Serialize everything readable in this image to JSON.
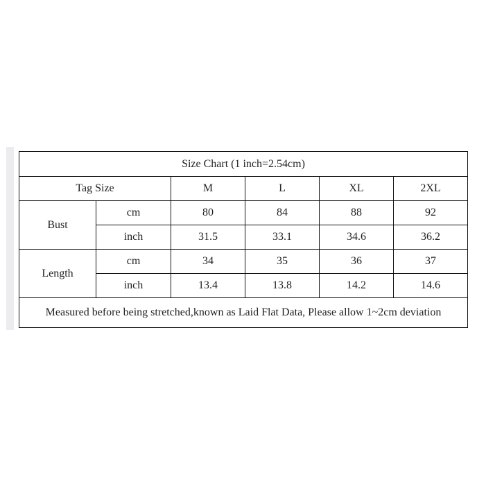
{
  "title": "Size Chart (1 inch=2.54cm)",
  "header": {
    "label": "Tag Size",
    "sizes": [
      "M",
      "L",
      "XL",
      "2XL"
    ]
  },
  "rows": [
    {
      "measure": "Bust",
      "unit": "cm",
      "values": [
        "80",
        "84",
        "88",
        "92"
      ]
    },
    {
      "measure": "Bust",
      "unit": "inch",
      "values": [
        "31.5",
        "33.1",
        "34.6",
        "36.2"
      ]
    },
    {
      "measure": "Length",
      "unit": "cm",
      "values": [
        "34",
        "35",
        "36",
        "37"
      ]
    },
    {
      "measure": "Length",
      "unit": "inch",
      "values": [
        "13.4",
        "13.8",
        "14.2",
        "14.6"
      ]
    }
  ],
  "note": "Measured before being stretched,known as Laid Flat Data, Please allow 1~2cm deviation"
}
